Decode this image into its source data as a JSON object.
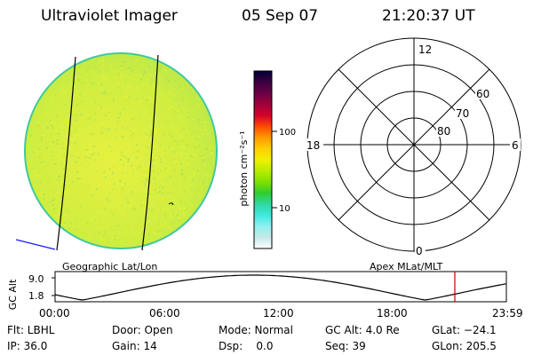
{
  "header": {
    "instrument": "Ultraviolet Imager",
    "date": "05 Sep 07",
    "time": "21:20:37 UT"
  },
  "colorbar": {
    "unit_label": "photon cm⁻²s⁻¹",
    "ticks": [
      "100",
      "10"
    ],
    "colors": [
      "#000033",
      "#3a0040",
      "#6b0047",
      "#a0003a",
      "#d4002c",
      "#ff4a00",
      "#ff9a00",
      "#ffcf00",
      "#f0f000",
      "#b8ec00",
      "#80e000",
      "#30cc30",
      "#30d8a0",
      "#40e8e0",
      "#90f0f0",
      "#c8e8e8",
      "#ffffff"
    ]
  },
  "image_panel": {
    "fill_color": "#d4ef40",
    "edge_color": "#40c8a0",
    "label": "Geographic Lat/Lon"
  },
  "polar_panel": {
    "label": "Apex MLat/MLT",
    "mlt_labels": {
      "top": "12",
      "left": "18",
      "right": "6",
      "bottom": "0"
    },
    "lat_labels": [
      "60",
      "70",
      "80"
    ]
  },
  "altitude_plot": {
    "ylabel": "GC Alt",
    "yticks": [
      "9.0",
      "1.8"
    ],
    "xticks": [
      "00:00",
      "06:00",
      "12:00",
      "18:00",
      "23:59"
    ],
    "marker_color": "#c00000"
  },
  "info": {
    "flt": "Flt: LBHL",
    "ip": "IP: 36.0",
    "door": "Door: Open",
    "gain": "Gain: 14",
    "mode": "Mode: Normal",
    "dsp": "Dsp:    0.0",
    "gcalt": "GC Alt: 4.0 Re",
    "seq": "Seq: 39",
    "glat": "GLat: −24.1",
    "glon": "GLon: 205.5"
  }
}
